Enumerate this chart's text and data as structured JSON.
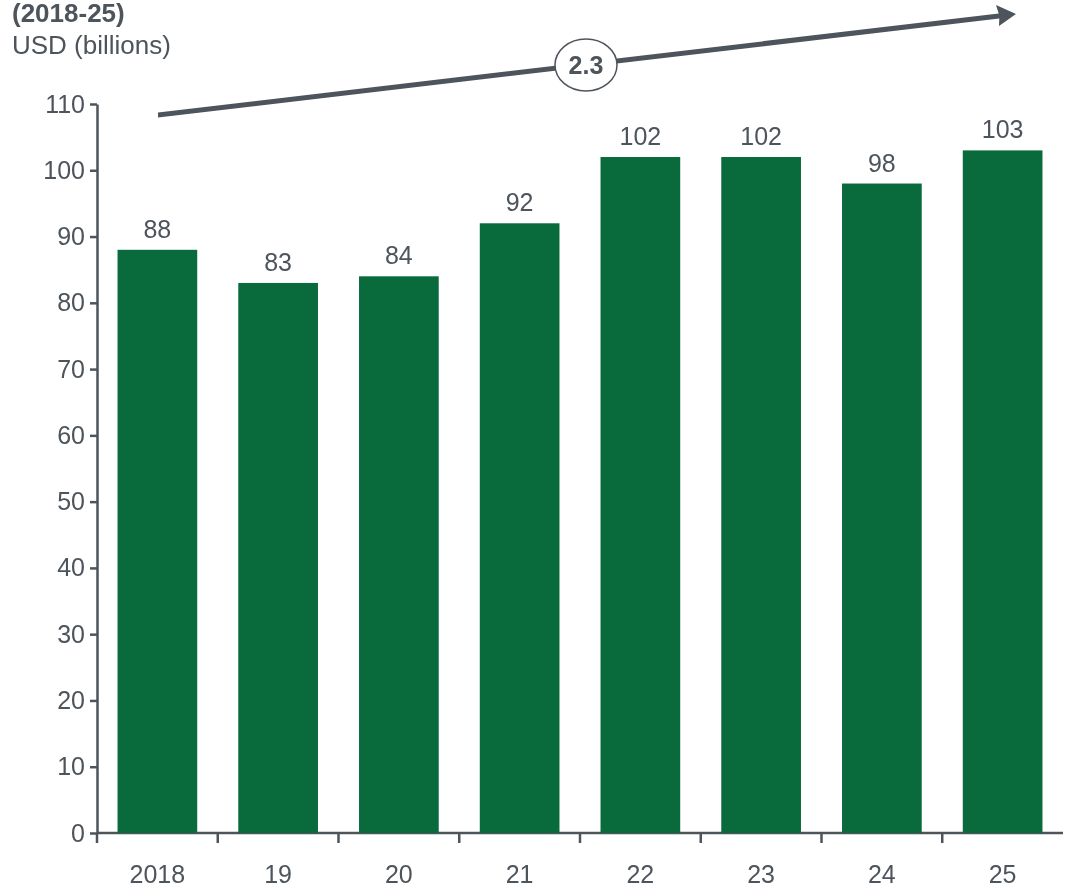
{
  "chart_data": {
    "type": "bar",
    "title": "(2018-25)",
    "subtitle": "USD (billions)",
    "categories": [
      "2018",
      "19",
      "20",
      "21",
      "22",
      "23",
      "24",
      "25"
    ],
    "values": [
      88,
      83,
      84,
      92,
      102,
      102,
      98,
      103
    ],
    "color": "#096b3c",
    "ylim": [
      0,
      110
    ],
    "yticks": [
      0,
      10,
      20,
      30,
      40,
      50,
      60,
      70,
      80,
      90,
      100,
      110
    ],
    "data_labels": true,
    "grid": false,
    "annotations": [
      "2.3"
    ]
  }
}
